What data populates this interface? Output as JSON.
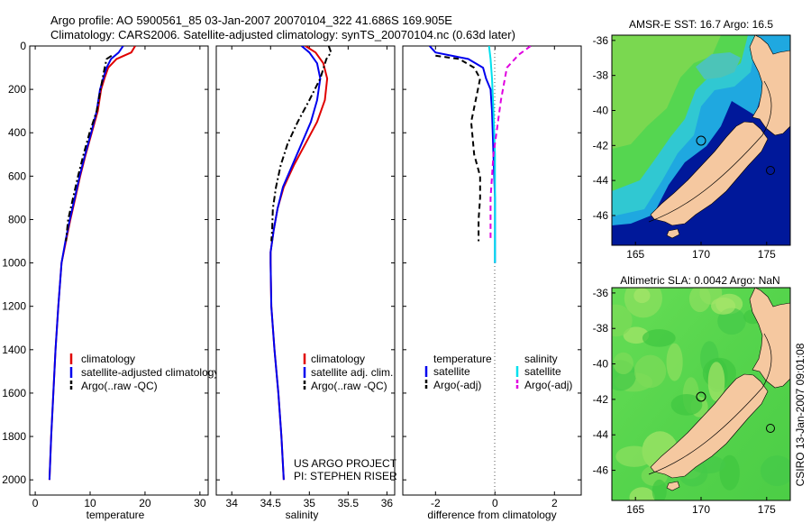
{
  "header": {
    "line1": "Argo profile: AO 5900561_85 03-Jan-2007 20070104_322 41.686S 169.905E",
    "line2": "Climatology: CARS2006. Satellite-adjusted climatology: synTS_20070104.nc (0.63d later)"
  },
  "credits": {
    "project": "US ARGO PROJECT",
    "pi": "PI: STEPHEN RISER",
    "timestamp": "CSIRO 13-Jan-2007 09:01:08"
  },
  "colors": {
    "climatology": "#e00000",
    "satellite": "#0000ee",
    "argo": "#000000",
    "satellite_salinity": "#00e0ee",
    "argo_salinity": "#e000e0",
    "land": "#f5c8a0",
    "deep_ocean": "#00189a",
    "sla_ocean": "#52d84a"
  },
  "chart_data": [
    {
      "type": "line",
      "name": "temperature-profile",
      "xlabel": "temperature",
      "ylabel": "",
      "xlim": [
        -1,
        31.5
      ],
      "ylim": [
        2070,
        0
      ],
      "xticks": [
        0,
        10,
        20,
        30
      ],
      "yticks": [
        0,
        200,
        400,
        600,
        800,
        1000,
        1200,
        1400,
        1600,
        1800,
        2000
      ],
      "legend": [
        "climatology",
        "satellite-adjusted climatology",
        "Argo(..raw -QC)"
      ],
      "series": [
        {
          "name": "climatology",
          "points": [
            [
              18.2,
              0
            ],
            [
              17.5,
              30
            ],
            [
              14.8,
              60
            ],
            [
              13.3,
              100
            ],
            [
              12.6,
              150
            ],
            [
              12.0,
              200
            ],
            [
              11.4,
              300
            ],
            [
              10.3,
              400
            ],
            [
              9.2,
              500
            ],
            [
              8.2,
              600
            ],
            [
              7.3,
              700
            ],
            [
              6.4,
              800
            ],
            [
              5.6,
              900
            ],
            [
              4.8,
              1000
            ],
            [
              4.2,
              1200
            ],
            [
              3.7,
              1400
            ],
            [
              3.3,
              1600
            ],
            [
              2.9,
              1800
            ],
            [
              2.6,
              2000
            ]
          ]
        },
        {
          "name": "satellite",
          "points": [
            [
              16.0,
              0
            ],
            [
              15.2,
              30
            ],
            [
              13.8,
              60
            ],
            [
              13.0,
              100
            ],
            [
              12.4,
              150
            ],
            [
              11.8,
              200
            ],
            [
              11.2,
              300
            ],
            [
              10.2,
              400
            ],
            [
              9.1,
              500
            ],
            [
              8.1,
              600
            ],
            [
              7.2,
              700
            ],
            [
              6.3,
              800
            ],
            [
              5.5,
              900
            ],
            [
              4.8,
              1000
            ],
            [
              4.2,
              1200
            ],
            [
              3.7,
              1400
            ],
            [
              3.3,
              1600
            ],
            [
              2.9,
              1800
            ],
            [
              2.6,
              2000
            ]
          ]
        },
        {
          "name": "argo",
          "points": [
            [
              13.9,
              45
            ],
            [
              13.0,
              60
            ],
            [
              12.5,
              120
            ],
            [
              11.9,
              200
            ],
            [
              11.2,
              300
            ],
            [
              9.9,
              400
            ],
            [
              8.8,
              500
            ],
            [
              7.8,
              600
            ],
            [
              6.9,
              700
            ],
            [
              6.0,
              800
            ],
            [
              5.6,
              900
            ]
          ]
        }
      ]
    },
    {
      "type": "line",
      "name": "salinity-profile",
      "xlabel": "salinity",
      "ylabel": "",
      "xlim": [
        33.8,
        36.1
      ],
      "ylim": [
        2070,
        0
      ],
      "xticks": [
        34,
        34.5,
        35,
        35.5,
        36
      ],
      "yticks": [],
      "legend": [
        "climatology",
        "satellite adj. clim.",
        "Argo(..raw -QC)"
      ],
      "series": [
        {
          "name": "climatology",
          "points": [
            [
              34.95,
              0
            ],
            [
              35.08,
              30
            ],
            [
              35.18,
              80
            ],
            [
              35.23,
              150
            ],
            [
              35.2,
              250
            ],
            [
              35.1,
              350
            ],
            [
              34.95,
              450
            ],
            [
              34.8,
              550
            ],
            [
              34.67,
              650
            ],
            [
              34.59,
              750
            ],
            [
              34.54,
              850
            ],
            [
              34.5,
              950
            ],
            [
              34.5,
              1000
            ],
            [
              34.51,
              1200
            ],
            [
              34.55,
              1400
            ],
            [
              34.6,
              1600
            ],
            [
              34.64,
              1800
            ],
            [
              34.67,
              2000
            ]
          ]
        },
        {
          "name": "satellite",
          "points": [
            [
              34.9,
              0
            ],
            [
              35.0,
              30
            ],
            [
              35.1,
              80
            ],
            [
              35.14,
              150
            ],
            [
              35.1,
              250
            ],
            [
              35.02,
              350
            ],
            [
              34.9,
              450
            ],
            [
              34.78,
              550
            ],
            [
              34.66,
              650
            ],
            [
              34.59,
              750
            ],
            [
              34.54,
              850
            ],
            [
              34.5,
              950
            ],
            [
              34.5,
              1000
            ],
            [
              34.51,
              1200
            ],
            [
              34.55,
              1400
            ],
            [
              34.6,
              1600
            ],
            [
              34.64,
              1800
            ],
            [
              34.67,
              2000
            ]
          ]
        },
        {
          "name": "argo",
          "points": [
            [
              35.25,
              0
            ],
            [
              35.28,
              30
            ],
            [
              35.22,
              60
            ],
            [
              35.14,
              150
            ],
            [
              35.0,
              250
            ],
            [
              34.85,
              350
            ],
            [
              34.72,
              450
            ],
            [
              34.63,
              550
            ],
            [
              34.57,
              650
            ],
            [
              34.53,
              750
            ],
            [
              34.52,
              850
            ],
            [
              34.51,
              900
            ]
          ]
        }
      ]
    },
    {
      "type": "line",
      "name": "difference-profile",
      "xlabel": "difference from climatology",
      "ylabel": "",
      "xlim": [
        -3.1,
        2.9
      ],
      "ylim": [
        2070,
        0
      ],
      "xticks": [
        -2,
        0,
        2
      ],
      "yticks": [],
      "legend_groups": [
        "temperature",
        "salinity"
      ],
      "legend": [
        "satellite",
        "Argo(-adj)",
        "satellite",
        "Argo(-adj)"
      ],
      "series": [
        {
          "name": "temperature satellite",
          "points": [
            [
              -2.2,
              0
            ],
            [
              -2.0,
              30
            ],
            [
              -0.9,
              60
            ],
            [
              -0.4,
              100
            ],
            [
              -0.3,
              150
            ],
            [
              -0.15,
              200
            ],
            [
              -0.1,
              300
            ],
            [
              -0.05,
              500
            ],
            [
              0,
              700
            ],
            [
              0,
              1000
            ]
          ]
        },
        {
          "name": "temperature argo",
          "points": [
            [
              -2.0,
              45
            ],
            [
              -1.2,
              60
            ],
            [
              -0.7,
              100
            ],
            [
              -0.5,
              150
            ],
            [
              -0.65,
              250
            ],
            [
              -0.8,
              350
            ],
            [
              -0.7,
              500
            ],
            [
              -0.5,
              600
            ],
            [
              -0.5,
              700
            ],
            [
              -0.55,
              800
            ],
            [
              -0.55,
              900
            ]
          ]
        },
        {
          "name": "salinity satellite",
          "points": [
            [
              -0.2,
              0
            ],
            [
              -0.15,
              60
            ],
            [
              -0.1,
              150
            ],
            [
              -0.05,
              300
            ],
            [
              0,
              500
            ],
            [
              0,
              1000
            ]
          ]
        },
        {
          "name": "salinity argo",
          "points": [
            [
              1.2,
              0
            ],
            [
              0.8,
              40
            ],
            [
              0.4,
              100
            ],
            [
              0.2,
              250
            ],
            [
              0.05,
              400
            ],
            [
              -0.05,
              500
            ],
            [
              -0.1,
              600
            ],
            [
              -0.15,
              700
            ],
            [
              -0.15,
              800
            ],
            [
              -0.15,
              900
            ]
          ]
        }
      ]
    },
    {
      "type": "heatmap",
      "name": "amsre-sst-map",
      "title": "AMSR-E SST: 16.7 Argo: 16.5",
      "xlim": [
        163.2,
        176.8
      ],
      "ylim": [
        -47.7,
        -35.7
      ],
      "xticks": [
        165,
        170,
        175
      ],
      "yticks": [
        -36,
        -38,
        -40,
        -42,
        -44,
        -46
      ],
      "marker": [
        169.9,
        -41.7
      ]
    },
    {
      "type": "heatmap",
      "name": "altimetric-sla-map",
      "title": "Altimetric SLA: 0.0042 Argo: NaN",
      "xlim": [
        163.2,
        176.8
      ],
      "ylim": [
        -47.7,
        -35.7
      ],
      "xticks": [
        165,
        170,
        175
      ],
      "yticks": [
        -36,
        -38,
        -40,
        -42,
        -44,
        -46
      ],
      "marker": [
        169.9,
        -41.7
      ]
    }
  ]
}
